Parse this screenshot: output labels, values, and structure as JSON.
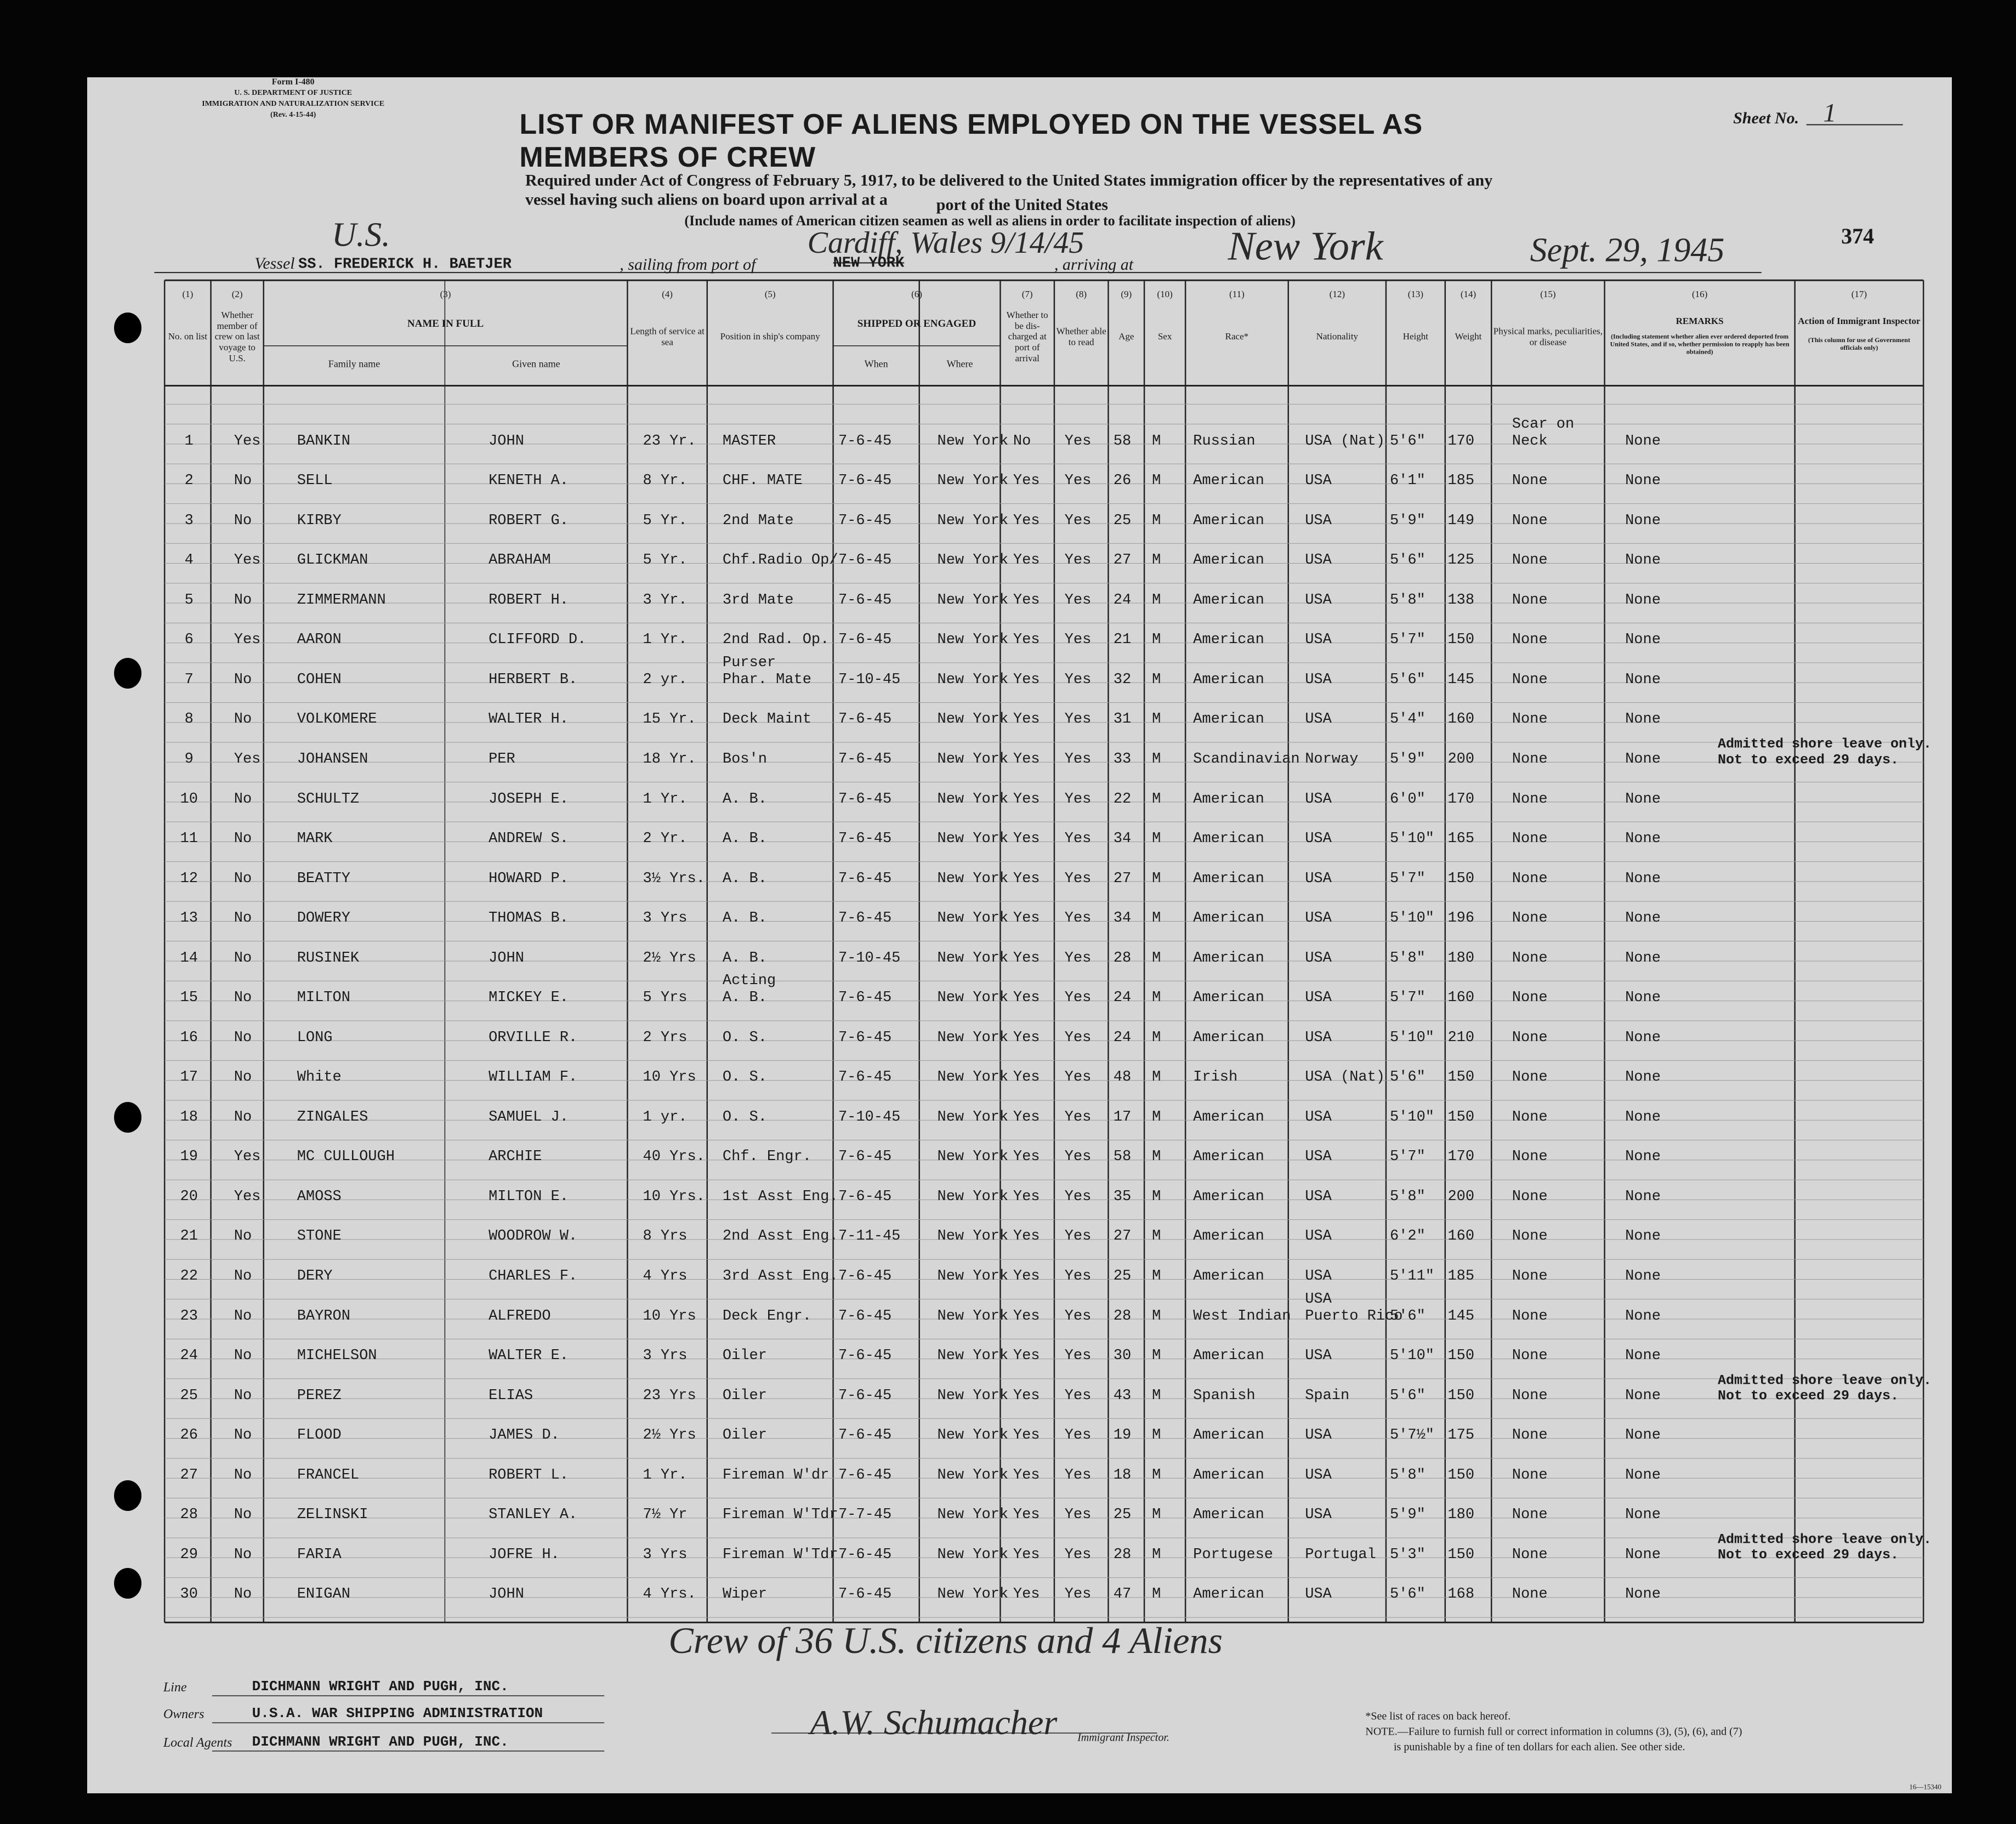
{
  "header": {
    "form": [
      "Form I-480",
      "U. S. DEPARTMENT OF JUSTICE",
      "IMMIGRATION AND NATURALIZATION SERVICE",
      "(Rev. 4-15-44)"
    ],
    "sheet_label": "Sheet No.",
    "sheet_number": "1",
    "title": "LIST OR MANIFEST OF ALIENS EMPLOYED ON THE VESSEL AS MEMBERS OF CREW",
    "subtitle": [
      "Required under Act of Congress of February 5, 1917, to be delivered to the United States immigration officer by the representatives of any vessel having such aliens on board upon arrival at a",
      "port of the United States"
    ],
    "instruction": "(Include names of American citizen seamen as well as aliens in order to facilitate inspection of aliens)",
    "vessel_label": "Vessel",
    "vessel_prefix": "U.S.",
    "vessel": "SS. FREDERICK H. BAETJER",
    "sailing_label": ", sailing from port of",
    "sailing_port": "Cardiff, Wales 9/14/45",
    "sailing_port_struck": "NEW YORK",
    "arriving_label": ", arriving at",
    "arriving_port": "New York",
    "arrival_date": "Sept. 29, 1945",
    "stamp": "374"
  },
  "columns": [
    {
      "num": "(1)",
      "label": "No. on list"
    },
    {
      "num": "(2)",
      "label": "Whether member of crew on last voyage to U.S."
    },
    {
      "num": "(3)",
      "label": "NAME IN FULL",
      "sub": [
        "Family name",
        "Given name"
      ]
    },
    {
      "num": "(4)",
      "label": "Length of service at sea"
    },
    {
      "num": "(5)",
      "label": "Position in ship's company"
    },
    {
      "num": "(6)",
      "label": "SHIPPED OR ENGAGED",
      "sub": [
        "When",
        "Where"
      ]
    },
    {
      "num": "(7)",
      "label": "Whether to be dis-charged at port of arrival"
    },
    {
      "num": "(8)",
      "label": "Whether able to read"
    },
    {
      "num": "(9)",
      "label": "Age"
    },
    {
      "num": "(10)",
      "label": "Sex"
    },
    {
      "num": "(11)",
      "label": "Race*"
    },
    {
      "num": "(12)",
      "label": "Nationality"
    },
    {
      "num": "(13)",
      "label": "Height"
    },
    {
      "num": "(14)",
      "label": "Weight"
    },
    {
      "num": "(15)",
      "label": "Physical marks, peculiarities, or disease"
    },
    {
      "num": "(16)",
      "label": "REMARKS",
      "note": "(Including statement whether alien ever ordered deported from United States, and if so, whether permission to reapply has been obtained)"
    },
    {
      "num": "(17)",
      "label": "Action of Immigrant Inspector",
      "note": "(This column for use of Government officials only)"
    }
  ],
  "rows": [
    {
      "cells": [
        "1",
        "Yes",
        "BANKIN",
        "JOHN",
        "23 Yr.",
        "MASTER",
        "7-6-45",
        "New York",
        "No",
        "Yes",
        "58",
        "M",
        "Russian",
        "USA (Nat)",
        "5'6\"",
        "170",
        "Scar on\nNeck",
        "None"
      ]
    },
    {
      "cells": [
        "2",
        "No",
        "SELL",
        "KENETH A.",
        "8 Yr.",
        "CHF. MATE",
        "7-6-45",
        "New York",
        "Yes",
        "Yes",
        "26",
        "M",
        "American",
        "USA",
        "6'1\"",
        "185",
        "None",
        "None"
      ]
    },
    {
      "cells": [
        "3",
        "No",
        "KIRBY",
        "ROBERT G.",
        "5 Yr.",
        "2nd Mate",
        "7-6-45",
        "New York",
        "Yes",
        "Yes",
        "25",
        "M",
        "American",
        "USA",
        "5'9\"",
        "149",
        "None",
        "None"
      ]
    },
    {
      "cells": [
        "4",
        "Yes",
        "GLICKMAN",
        "ABRAHAM",
        "5 Yr.",
        "Chf.Radio Op/",
        "7-6-45",
        "New York",
        "Yes",
        "Yes",
        "27",
        "M",
        "American",
        "USA",
        "5'6\"",
        "125",
        "None",
        "None"
      ]
    },
    {
      "cells": [
        "5",
        "No",
        "ZIMMERMANN",
        "ROBERT H.",
        "3 Yr.",
        "3rd Mate",
        "7-6-45",
        "New York",
        "Yes",
        "Yes",
        "24",
        "M",
        "American",
        "USA",
        "5'8\"",
        "138",
        "None",
        "None"
      ]
    },
    {
      "cells": [
        "6",
        "Yes",
        "AARON",
        "CLIFFORD D.",
        "1 Yr.",
        "2nd Rad. Op.",
        "7-6-45",
        "New York",
        "Yes",
        "Yes",
        "21",
        "M",
        "American",
        "USA",
        "5'7\"",
        "150",
        "None",
        "None"
      ]
    },
    {
      "cells": [
        "7",
        "No",
        "COHEN",
        "HERBERT B.",
        "2 yr.",
        "Purser\nPhar. Mate",
        "7-10-45",
        "New York",
        "Yes",
        "Yes",
        "32",
        "M",
        "American",
        "USA",
        "5'6\"",
        "145",
        "None",
        "None"
      ]
    },
    {
      "cells": [
        "8",
        "No",
        "VOLKOMERE",
        "WALTER H.",
        "15 Yr.",
        "Deck Maint",
        "7-6-45",
        "New York",
        "Yes",
        "Yes",
        "31",
        "M",
        "American",
        "USA",
        "5'4\"",
        "160",
        "None",
        "None"
      ]
    },
    {
      "cells": [
        "9",
        "Yes",
        "JOHANSEN",
        "PER",
        "18 Yr.",
        "Bos'n",
        "7-6-45",
        "New York",
        "Yes",
        "Yes",
        "33",
        "M",
        "Scandinavian",
        "Norway",
        "5'9\"",
        "200",
        "None",
        "None"
      ],
      "action": "Admitted shore leave only.\nNot to exceed 29 days."
    },
    {
      "cells": [
        "10",
        "No",
        "SCHULTZ",
        "JOSEPH E.",
        "1 Yr.",
        "A. B.",
        "7-6-45",
        "New York",
        "Yes",
        "Yes",
        "22",
        "M",
        "American",
        "USA",
        "6'0\"",
        "170",
        "None",
        "None"
      ]
    },
    {
      "cells": [
        "11",
        "No",
        "MARK",
        "ANDREW S.",
        "2 Yr.",
        "A. B.",
        "7-6-45",
        "New York",
        "Yes",
        "Yes",
        "34",
        "M",
        "American",
        "USA",
        "5'10\"",
        "165",
        "None",
        "None"
      ]
    },
    {
      "cells": [
        "12",
        "No",
        "BEATTY",
        "HOWARD P.",
        "3½ Yrs.",
        "A. B.",
        "7-6-45",
        "New York",
        "Yes",
        "Yes",
        "27",
        "M",
        "American",
        "USA",
        "5'7\"",
        "150",
        "None",
        "None"
      ]
    },
    {
      "cells": [
        "13",
        "No",
        "DOWERY",
        "THOMAS B.",
        "3 Yrs",
        "A. B.",
        "7-6-45",
        "New York",
        "Yes",
        "Yes",
        "34",
        "M",
        "American",
        "USA",
        "5'10\"",
        "196",
        "None",
        "None"
      ]
    },
    {
      "cells": [
        "14",
        "No",
        "RUSINEK",
        "JOHN",
        "2½ Yrs",
        "A. B.",
        "7-10-45",
        "New York",
        "Yes",
        "Yes",
        "28",
        "M",
        "American",
        "USA",
        "5'8\"",
        "180",
        "None",
        "None"
      ]
    },
    {
      "cells": [
        "15",
        "No",
        "MILTON",
        "MICKEY E.",
        "5 Yrs",
        "Acting\nA. B.",
        "7-6-45",
        "New York",
        "Yes",
        "Yes",
        "24",
        "M",
        "American",
        "USA",
        "5'7\"",
        "160",
        "None",
        "None"
      ]
    },
    {
      "cells": [
        "16",
        "No",
        "LONG",
        "ORVILLE R.",
        "2 Yrs",
        "O. S.",
        "7-6-45",
        "New York",
        "Yes",
        "Yes",
        "24",
        "M",
        "American",
        "USA",
        "5'10\"",
        "210",
        "None",
        "None"
      ]
    },
    {
      "cells": [
        "17",
        "No",
        "White",
        "WILLIAM F.",
        "10 Yrs",
        "O. S.",
        "7-6-45",
        "New York",
        "Yes",
        "Yes",
        "48",
        "M",
        "Irish",
        "USA (Nat)",
        "5'6\"",
        "150",
        "None",
        "None"
      ]
    },
    {
      "cells": [
        "18",
        "No",
        "ZINGALES",
        "SAMUEL J.",
        "1 yr.",
        "O. S.",
        "7-10-45",
        "New York",
        "Yes",
        "Yes",
        "17",
        "M",
        "American",
        "USA",
        "5'10\"",
        "150",
        "None",
        "None"
      ]
    },
    {
      "cells": [
        "19",
        "Yes",
        "MC CULLOUGH",
        "ARCHIE",
        "40 Yrs.",
        "Chf. Engr.",
        "7-6-45",
        "New York",
        "Yes",
        "Yes",
        "58",
        "M",
        "American",
        "USA",
        "5'7\"",
        "170",
        "None",
        "None"
      ]
    },
    {
      "cells": [
        "20",
        "Yes",
        "AMOSS",
        "MILTON E.",
        "10 Yrs.",
        "1st Asst Eng.",
        "7-6-45",
        "New York",
        "Yes",
        "Yes",
        "35",
        "M",
        "American",
        "USA",
        "5'8\"",
        "200",
        "None",
        "None"
      ]
    },
    {
      "cells": [
        "21",
        "No",
        "STONE",
        "WOODROW W.",
        "8 Yrs",
        "2nd Asst Eng.",
        "7-11-45",
        "New York",
        "Yes",
        "Yes",
        "27",
        "M",
        "American",
        "USA",
        "6'2\"",
        "160",
        "None",
        "None"
      ]
    },
    {
      "cells": [
        "22",
        "No",
        "DERY",
        "CHARLES F.",
        "4 Yrs",
        "3rd Asst Eng.",
        "7-6-45",
        "New York",
        "Yes",
        "Yes",
        "25",
        "M",
        "American",
        "USA",
        "5'11\"",
        "185",
        "None",
        "None"
      ]
    },
    {
      "cells": [
        "23",
        "No",
        "BAYRON",
        "ALFREDO",
        "10 Yrs",
        "Deck Engr.",
        "7-6-45",
        "New York",
        "Yes",
        "Yes",
        "28",
        "M",
        "West Indian",
        "USA\nPuerto Rico",
        "5'6\"",
        "145",
        "None",
        "None"
      ]
    },
    {
      "cells": [
        "24",
        "No",
        "MICHELSON",
        "WALTER E.",
        "3 Yrs",
        "Oiler",
        "7-6-45",
        "New York",
        "Yes",
        "Yes",
        "30",
        "M",
        "American",
        "USA",
        "5'10\"",
        "150",
        "None",
        "None"
      ]
    },
    {
      "cells": [
        "25",
        "No",
        "PEREZ",
        "ELIAS",
        "23 Yrs",
        "Oiler",
        "7-6-45",
        "New York",
        "Yes",
        "Yes",
        "43",
        "M",
        "Spanish",
        "Spain",
        "5'6\"",
        "150",
        "None",
        "None"
      ],
      "action": "Admitted shore leave only.\nNot to exceed 29 days."
    },
    {
      "cells": [
        "26",
        "No",
        "FLOOD",
        "JAMES D.",
        "2½ Yrs",
        "Oiler",
        "7-6-45",
        "New York",
        "Yes",
        "Yes",
        "19",
        "M",
        "American",
        "USA",
        "5'7½\"",
        "175",
        "None",
        "None"
      ]
    },
    {
      "cells": [
        "27",
        "No",
        "FRANCEL",
        "ROBERT L.",
        "1 Yr.",
        "Fireman W'dr",
        "7-6-45",
        "New York",
        "Yes",
        "Yes",
        "18",
        "M",
        "American",
        "USA",
        "5'8\"",
        "150",
        "None",
        "None"
      ]
    },
    {
      "cells": [
        "28",
        "No",
        "ZELINSKI",
        "STANLEY A.",
        "7½ Yr",
        "Fireman W'Tdr",
        "7-7-45",
        "New York",
        "Yes",
        "Yes",
        "25",
        "M",
        "American",
        "USA",
        "5'9\"",
        "180",
        "None",
        "None"
      ]
    },
    {
      "cells": [
        "29",
        "No",
        "FARIA",
        "JOFRE H.",
        "3 Yrs",
        "Fireman W'Tdr",
        "7-6-45",
        "New York",
        "Yes",
        "Yes",
        "28",
        "M",
        "Portugese",
        "Portugal",
        "5'3\"",
        "150",
        "None",
        "None"
      ],
      "action": "Admitted shore leave only.\nNot to exceed 29 days."
    },
    {
      "cells": [
        "30",
        "No",
        "ENIGAN",
        "JOHN",
        "4 Yrs.",
        "Wiper",
        "7-6-45",
        "New York",
        "Yes",
        "Yes",
        "47",
        "M",
        "American",
        "USA",
        "5'6\"",
        "168",
        "None",
        "None"
      ]
    }
  ],
  "crew_note": "Crew of 36 U.S. citizens and 4 Aliens",
  "footer": {
    "line_label": "Line",
    "line": "DICHMANN WRIGHT AND PUGH, INC.",
    "owners_label": "Owners",
    "owners": "U.S.A. WAR SHIPPING ADMINISTRATION",
    "agents_label": "Local Agents",
    "agents": "DICHMANN WRIGHT AND PUGH, INC.",
    "signature": "A.W. Schumacher",
    "signature_title": "Immigrant Inspector.",
    "races_note": "*See list of races on back hereof.",
    "note": [
      "NOTE.—Failure to furnish full or correct information in columns (3), (5), (6), and (7)",
      "is punishable by a fine of ten dollars for each alien.   See other side."
    ],
    "form_code": "16—15340"
  }
}
